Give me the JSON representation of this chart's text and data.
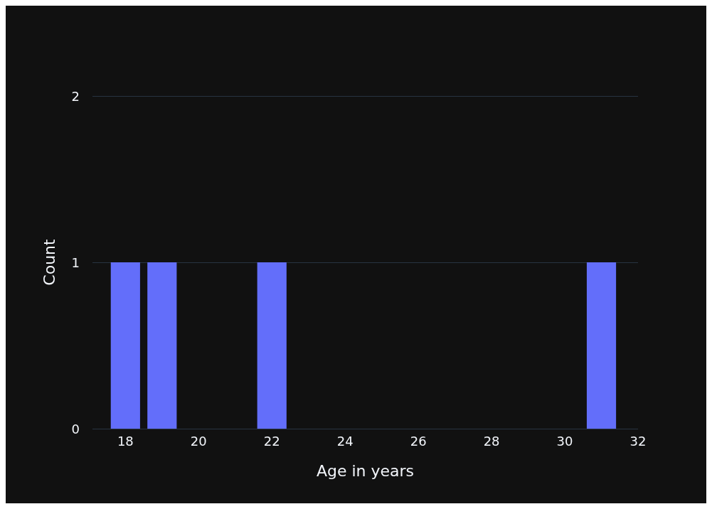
{
  "chart_data": {
    "type": "histogram",
    "xlabel": "Age in years",
    "ylabel": "Count",
    "bins": [
      17.5,
      18.5,
      19.5,
      20.5,
      21.5,
      22.5,
      23.5,
      24.5,
      25.5,
      26.5,
      27.5,
      28.5,
      29.5,
      30.5,
      31.5
    ],
    "values": [
      1,
      1,
      0,
      0,
      1,
      0,
      0,
      0,
      0,
      0,
      0,
      0,
      0,
      1
    ],
    "color": "#636efa",
    "xlim": [
      17.1,
      32
    ],
    "xticks": [
      18,
      20,
      22,
      24,
      26,
      28,
      30,
      32
    ],
    "ylim": [
      0,
      2
    ],
    "yticks": [
      0,
      1,
      2
    ],
    "grid": "y"
  }
}
